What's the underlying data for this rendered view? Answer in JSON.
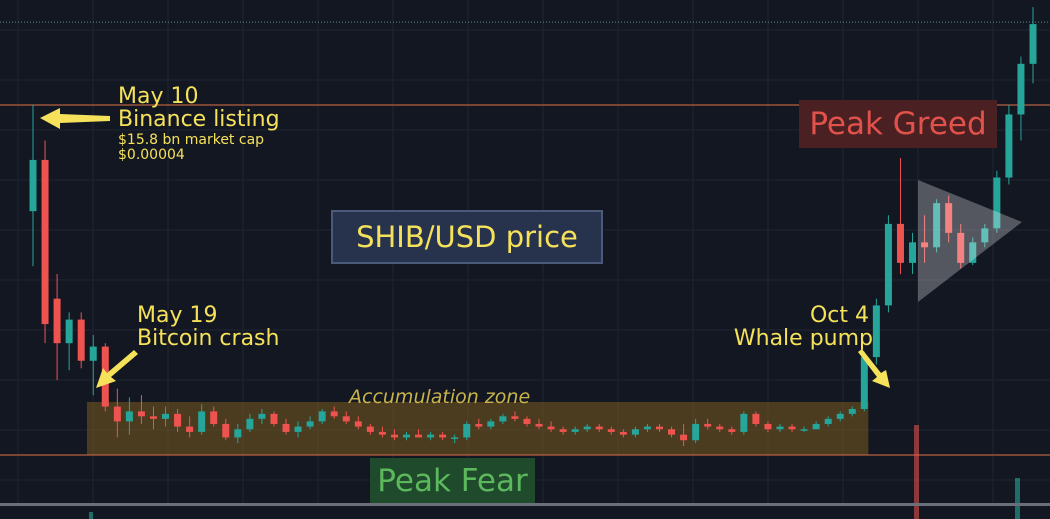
{
  "chart_data": {
    "type": "candlestick",
    "title": "SHIB/USD price",
    "unit": "USD",
    "y_scale": "log",
    "grid": true,
    "colors": {
      "up": "#26a69a",
      "down": "#ef5350",
      "background": "#131722",
      "annotation": "#f6e25a",
      "level_line": "#b5603e"
    },
    "candles_ohlc": [
      [
        2.25e-05,
        4e-05,
        1.67e-05,
        2.97e-05
      ],
      [
        2.97e-05,
        3.3e-05,
        1.1e-05,
        1.22e-05
      ],
      [
        1.4e-05,
        1.6e-05,
        9e-06,
        1.1e-05
      ],
      [
        1.1e-05,
        1.3e-05,
        9.5e-06,
        1.25e-05
      ],
      [
        1.25e-05,
        1.3e-05,
        9.6e-06,
        1e-05
      ],
      [
        1e-05,
        1.15e-05,
        8.3e-06,
        1.08e-05
      ],
      [
        1.08e-05,
        1.1e-05,
        7.6e-06,
        7.8e-06
      ],
      [
        7.8e-06,
        8.6e-06,
        6.6e-06,
        7.2e-06
      ],
      [
        7.2e-06,
        8.2e-06,
        6.7e-06,
        7.6e-06
      ],
      [
        7.6e-06,
        8.3e-06,
        7.1e-06,
        7.4e-06
      ],
      [
        7.4e-06,
        7.8e-06,
        6.9e-06,
        7.3e-06
      ],
      [
        7.3e-06,
        7.8e-06,
        7e-06,
        7.5e-06
      ],
      [
        7.5e-06,
        7.7e-06,
        6.8e-06,
        7e-06
      ],
      [
        7e-06,
        7.4e-06,
        6.6e-06,
        6.8e-06
      ],
      [
        6.8e-06,
        7.9e-06,
        6.7e-06,
        7.6e-06
      ],
      [
        7.6e-06,
        7.8e-06,
        7e-06,
        7.1e-06
      ],
      [
        7.1e-06,
        7.3e-06,
        6.5e-06,
        6.6e-06
      ],
      [
        6.6e-06,
        7.1e-06,
        6.4e-06,
        6.9e-06
      ],
      [
        6.9e-06,
        7.5e-06,
        6.8e-06,
        7.3e-06
      ],
      [
        7.3e-06,
        7.7e-06,
        7.1e-06,
        7.5e-06
      ],
      [
        7.5e-06,
        7.6e-06,
        7e-06,
        7.1e-06
      ],
      [
        7.1e-06,
        7.3e-06,
        6.7e-06,
        6.8e-06
      ],
      [
        6.8e-06,
        7.2e-06,
        6.6e-06,
        7e-06
      ],
      [
        7e-06,
        7.4e-06,
        6.9e-06,
        7.2e-06
      ],
      [
        7.2e-06,
        7.7e-06,
        7.1e-06,
        7.6e-06
      ],
      [
        7.6e-06,
        7.8e-06,
        7.3e-06,
        7.4e-06
      ],
      [
        7.4e-06,
        7.6e-06,
        7.1e-06,
        7.2e-06
      ],
      [
        7.2e-06,
        7.4e-06,
        6.9e-06,
        7e-06
      ],
      [
        7e-06,
        7.1e-06,
        6.7e-06,
        6.8e-06
      ],
      [
        6.8e-06,
        7e-06,
        6.6e-06,
        6.7e-06
      ],
      [
        6.7e-06,
        6.9e-06,
        6.5e-06,
        6.6e-06
      ],
      [
        6.6e-06,
        6.8e-06,
        6.5e-06,
        6.7e-06
      ],
      [
        6.7e-06,
        6.9e-06,
        6.6e-06,
        6.6e-06
      ],
      [
        6.6e-06,
        6.8e-06,
        6.5e-06,
        6.7e-06
      ],
      [
        6.7e-06,
        6.8e-06,
        6.5e-06,
        6.6e-06
      ],
      [
        6.6e-06,
        6.7e-06,
        6.4e-06,
        6.6e-06
      ],
      [
        6.6e-06,
        7.2e-06,
        6.5e-06,
        7.1e-06
      ],
      [
        7.1e-06,
        7.3e-06,
        6.9e-06,
        7e-06
      ],
      [
        7e-06,
        7.3e-06,
        6.9e-06,
        7.2e-06
      ],
      [
        7.2e-06,
        7.5e-06,
        7.1e-06,
        7.4e-06
      ],
      [
        7.4e-06,
        7.6e-06,
        7.2e-06,
        7.3e-06
      ],
      [
        7.3e-06,
        7.4e-06,
        7e-06,
        7.1e-06
      ],
      [
        7.1e-06,
        7.3e-06,
        6.9e-06,
        7e-06
      ],
      [
        7e-06,
        7.2e-06,
        6.8e-06,
        6.9e-06
      ],
      [
        6.9e-06,
        7e-06,
        6.7e-06,
        6.8e-06
      ],
      [
        6.8e-06,
        7e-06,
        6.7e-06,
        6.9e-06
      ],
      [
        6.9e-06,
        7.1e-06,
        6.8e-06,
        7e-06
      ],
      [
        7e-06,
        7.1e-06,
        6.8e-06,
        6.9e-06
      ],
      [
        6.9e-06,
        7e-06,
        6.7e-06,
        6.8e-06
      ],
      [
        6.8e-06,
        6.9e-06,
        6.6e-06,
        6.7e-06
      ],
      [
        6.7e-06,
        7e-06,
        6.6e-06,
        6.9e-06
      ],
      [
        6.9e-06,
        7.1e-06,
        6.8e-06,
        7e-06
      ],
      [
        7e-06,
        7.1e-06,
        6.8e-06,
        6.9e-06
      ],
      [
        6.9e-06,
        7e-06,
        6.6e-06,
        6.7e-06
      ],
      [
        6.7e-06,
        7.1e-06,
        6.3e-06,
        6.5e-06
      ],
      [
        6.5e-06,
        7.3e-06,
        6.4e-06,
        7.1e-06
      ],
      [
        7.1e-06,
        7.3e-06,
        6.9e-06,
        7e-06
      ],
      [
        7e-06,
        7.1e-06,
        6.8e-06,
        6.9e-06
      ],
      [
        6.9e-06,
        7e-06,
        6.7e-06,
        6.8e-06
      ],
      [
        6.8e-06,
        7.6e-06,
        6.7e-06,
        7.5e-06
      ],
      [
        7.5e-06,
        7.6e-06,
        7e-06,
        7.1e-06
      ],
      [
        7.1e-06,
        7.2e-06,
        6.8e-06,
        6.9e-06
      ],
      [
        6.9e-06,
        7.1e-06,
        6.8e-06,
        7e-06
      ],
      [
        7e-06,
        7.1e-06,
        6.8e-06,
        6.9e-06
      ],
      [
        6.9e-06,
        7e-06,
        6.8e-06,
        6.9e-06
      ],
      [
        6.9e-06,
        7.2e-06,
        6.9e-06,
        7.1e-06
      ],
      [
        7.1e-06,
        7.4e-06,
        7e-06,
        7.3e-06
      ],
      [
        7.3e-06,
        7.6e-06,
        7.2e-06,
        7.5e-06
      ],
      [
        7.5e-06,
        7.8e-06,
        7.4e-06,
        7.7e-06
      ],
      [
        7.7e-06,
        1.05e-05,
        7.6e-06,
        1.02e-05
      ],
      [
        1.02e-05,
        1.4e-05,
        9.8e-06,
        1.35e-05
      ],
      [
        1.35e-05,
        2.2e-05,
        1.3e-05,
        2.1e-05
      ],
      [
        2.1e-05,
        3e-05,
        1.6e-05,
        1.7e-05
      ],
      [
        1.7e-05,
        2e-05,
        1.6e-05,
        1.9e-05
      ],
      [
        1.9e-05,
        2.2e-05,
        1.7e-05,
        1.85e-05
      ],
      [
        1.85e-05,
        2.4e-05,
        1.8e-05,
        2.35e-05
      ],
      [
        2.35e-05,
        2.45e-05,
        1.9e-05,
        2e-05
      ],
      [
        2e-05,
        2.1e-05,
        1.65e-05,
        1.7e-05
      ],
      [
        1.7e-05,
        1.95e-05,
        1.68e-05,
        1.9e-05
      ],
      [
        1.9e-05,
        2.1e-05,
        1.85e-05,
        2.05e-05
      ],
      [
        2.05e-05,
        2.8e-05,
        2e-05,
        2.7e-05
      ],
      [
        2.7e-05,
        4e-05,
        2.6e-05,
        3.8e-05
      ],
      [
        3.8e-05,
        5.2e-05,
        3.3e-05,
        5e-05
      ],
      [
        5e-05,
        6.8e-05,
        4.5e-05,
        6.2e-05
      ]
    ],
    "levels": [
      4e-05,
      6e-06
    ],
    "last_price": 6.2e-05,
    "accumulation_zone": {
      "low": 6e-06,
      "high": 8e-06
    }
  },
  "annotations": {
    "may10_date": "May 10",
    "may10_event": "Binance listing",
    "may10_cap": "$15.8 bn market cap",
    "may10_price": "$0.00004",
    "title": "SHIB/USD price",
    "may19_date": "May 19",
    "may19_event": "Bitcoin crash",
    "oct4_date": "Oct 4",
    "oct4_event": "Whale pump",
    "accumulation": "Accumulation zone",
    "peak_fear": "Peak Fear",
    "peak_greed": "Peak Greed"
  }
}
